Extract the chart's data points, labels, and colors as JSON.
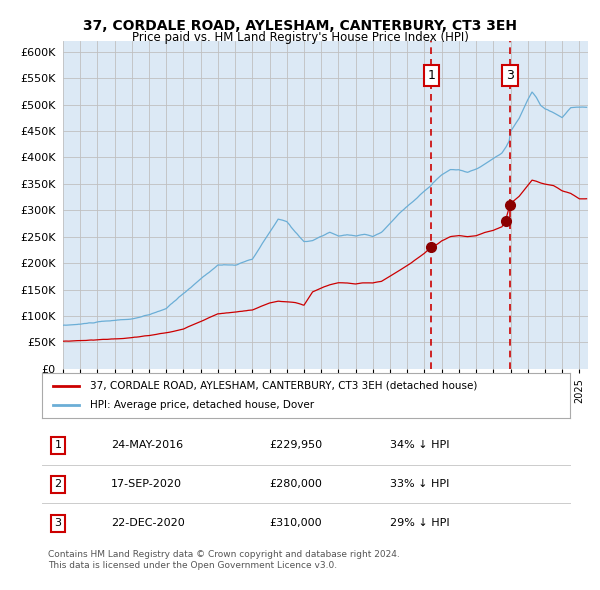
{
  "title": "37, CORDALE ROAD, AYLESHAM, CANTERBURY, CT3 3EH",
  "subtitle": "Price paid vs. HM Land Registry's House Price Index (HPI)",
  "legend_property": "37, CORDALE ROAD, AYLESHAM, CANTERBURY, CT3 3EH (detached house)",
  "legend_hpi": "HPI: Average price, detached house, Dover",
  "footer1": "Contains HM Land Registry data © Crown copyright and database right 2024.",
  "footer2": "This data is licensed under the Open Government Licence v3.0.",
  "transactions": [
    {
      "num": 1,
      "date": "24-MAY-2016",
      "price": 229950,
      "pct": "34% ↓ HPI",
      "date_dec": 2016.39
    },
    {
      "num": 2,
      "date": "17-SEP-2020",
      "price": 280000,
      "pct": "33% ↓ HPI",
      "date_dec": 2020.71
    },
    {
      "num": 3,
      "date": "22-DEC-2020",
      "price": 310000,
      "pct": "29% ↓ HPI",
      "date_dec": 2020.97
    }
  ],
  "hpi_color": "#6baed6",
  "property_color": "#cc0000",
  "marker_color": "#8b0000",
  "vline_color": "#cc0000",
  "grid_color": "#c0c0c0",
  "plot_bg": "#dce9f5",
  "ylim": [
    0,
    620000
  ],
  "yticks": [
    0,
    50000,
    100000,
    150000,
    200000,
    250000,
    300000,
    350000,
    400000,
    450000,
    500000,
    550000,
    600000
  ]
}
